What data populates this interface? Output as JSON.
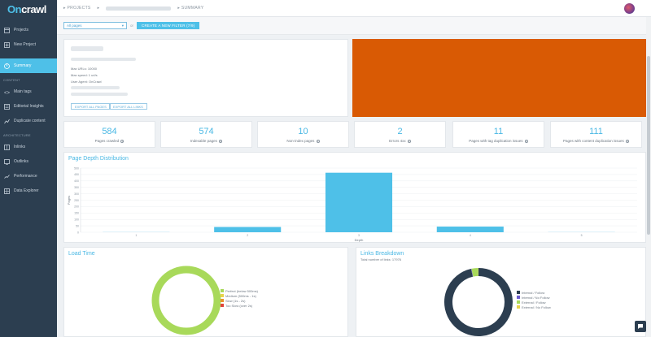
{
  "app": {
    "logo_prefix": "On",
    "logo_suffix": "crawl"
  },
  "sidebar": {
    "items_top": [
      {
        "label": "Projects",
        "icon": "projects-icon"
      },
      {
        "label": "New Project",
        "icon": "new-project-icon"
      }
    ],
    "active": {
      "label": "Summary",
      "icon": "summary-icon"
    },
    "section_content": "CONTENT",
    "items_content": [
      {
        "label": "Main tags",
        "icon": "tags-icon"
      },
      {
        "label": "Editorial Insights",
        "icon": "editorial-icon"
      },
      {
        "label": "Duplicate content",
        "icon": "duplicate-icon"
      }
    ],
    "section_architecture": "ARCHITECTURE",
    "items_architecture": [
      {
        "label": "Inlinks",
        "icon": "inlinks-icon"
      },
      {
        "label": "Outlinks",
        "icon": "outlinks-icon"
      },
      {
        "label": "Performance",
        "icon": "performance-icon"
      },
      {
        "label": "Data Explorer",
        "icon": "data-explorer-icon"
      }
    ]
  },
  "topbar": {
    "crumb_projects": "PROJECTS",
    "crumb_summary": "SUMMARY"
  },
  "filter": {
    "selected": "All pages",
    "or": "or",
    "create_label": "CREATE A NEW FILTER (7/9)"
  },
  "overview": {
    "max_urls": "Max URLs: 10000",
    "max_speed": "Max speed: 1 url/s",
    "user_agent": "User Agent: OnCrawl",
    "export_pages": "EXPORT ALL PAGES",
    "export_links": "EXPORT ALL LINKS"
  },
  "stats": [
    {
      "value": "584",
      "label": "Pages crawled"
    },
    {
      "value": "574",
      "label": "Indexable pages"
    },
    {
      "value": "10",
      "label": "Non-index pages"
    },
    {
      "value": "2",
      "label": "Errors 4xx"
    },
    {
      "value": "11",
      "label": "Pages with tag duplication issues"
    },
    {
      "value": "111",
      "label": "Pages with content duplication issues"
    }
  ],
  "depth_chart": {
    "title": "Page Depth Distribution",
    "chart_data": {
      "type": "bar",
      "categories": [
        "1",
        "2",
        "3",
        "4",
        "5"
      ],
      "values": [
        1,
        41,
        464,
        44,
        1
      ],
      "xlabel": "Depth",
      "ylabel": "Pages",
      "ylim": [
        0,
        500
      ],
      "yticks": [
        "0",
        "50",
        "100",
        "150",
        "200",
        "250",
        "300",
        "350",
        "400",
        "450",
        "500"
      ],
      "color": "#4ec0e8",
      "grid": true
    }
  },
  "load_time": {
    "title": "Load Time",
    "chart_data": {
      "type": "pie",
      "labels": [
        "Perfect (below 500ms)",
        "Medium (500ms - 1s)",
        "Slow (1s - 2s)",
        "Too Slow (over 2s)"
      ],
      "values": [
        584,
        0,
        0,
        0
      ],
      "colors": [
        "#a8d95a",
        "#e8d34a",
        "#e8962a",
        "#e0443a"
      ]
    }
  },
  "links": {
    "title": "Links Breakdown",
    "subtitle": "Total number of links: 17976",
    "chart_data": {
      "type": "pie",
      "labels": [
        "Internal / Follow",
        "Internal / No Follow",
        "External / Follow",
        "External / No Follow"
      ],
      "values": [
        96.5,
        0.2,
        3.2,
        0.1
      ],
      "colors": [
        "#2c3e50",
        "#6a5acd",
        "#a8d95a",
        "#e8d34a"
      ]
    }
  }
}
